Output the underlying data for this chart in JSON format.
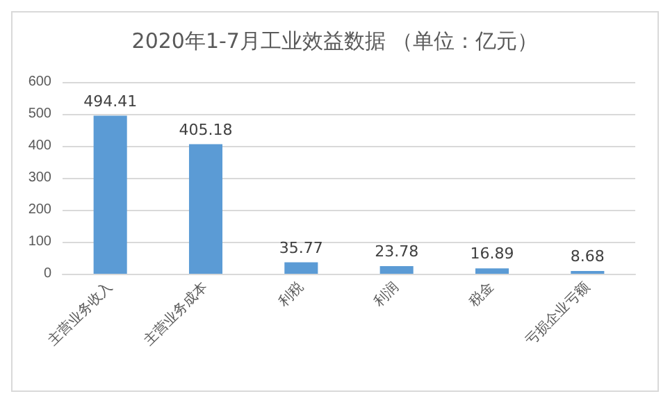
{
  "chart_data": {
    "type": "bar",
    "title": "2020年1-7月工业效益数据 （单位：亿元）",
    "categories": [
      "主营业务收入",
      "主营业务成本",
      "利税",
      "利润",
      "税金",
      "亏损企业亏额"
    ],
    "values": [
      494.41,
      405.18,
      35.77,
      23.78,
      16.89,
      8.68
    ],
    "color": "#5b9bd5",
    "ylim": [
      0,
      600
    ],
    "yticks": [
      0,
      100,
      200,
      300,
      400,
      500,
      600
    ],
    "grid": "y",
    "data_labels": true
  }
}
